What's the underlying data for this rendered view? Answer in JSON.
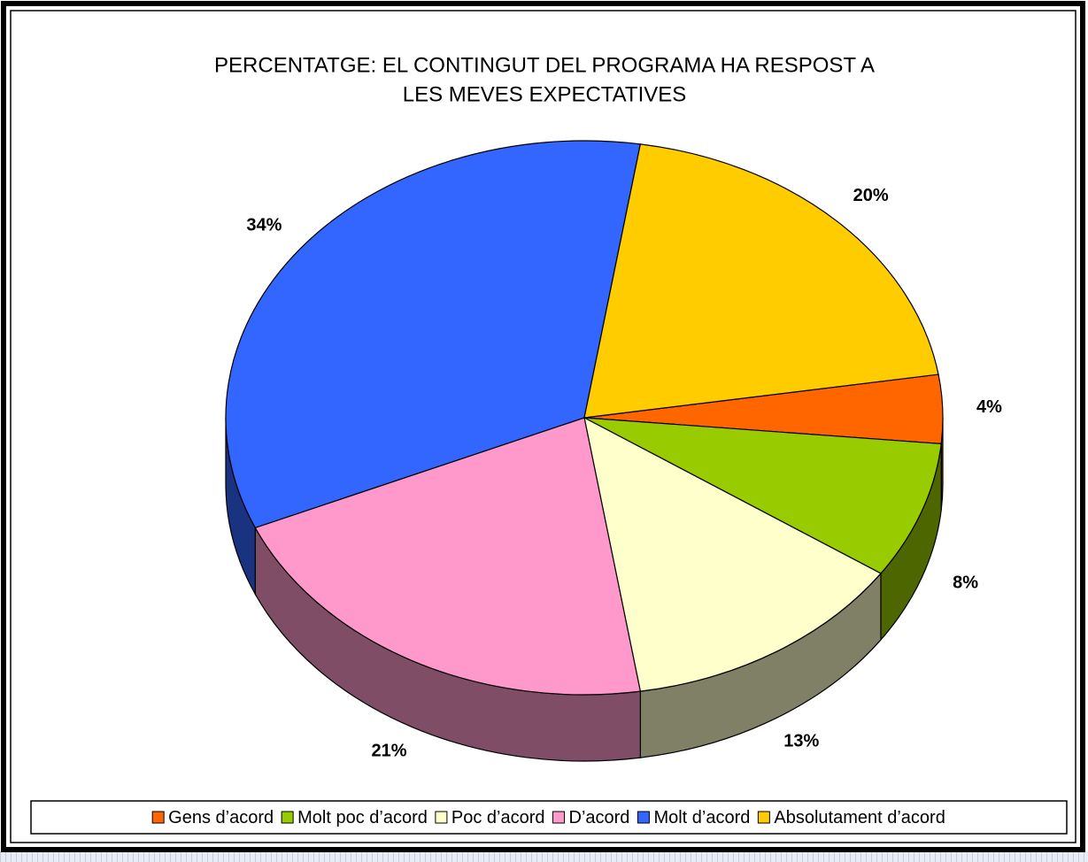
{
  "chart_data": {
    "type": "pie",
    "three_d": true,
    "title": [
      "PERCENTATGE: EL CONTINGUT DEL PROGRAMA HA RESPOST A",
      "LES MEVES EXPECTATIVES"
    ],
    "categories": [
      "Gens d’acord",
      "Molt poc d’acord",
      "Poc d’acord",
      "D’acord",
      "Molt d’acord",
      "Absolutament d’acord"
    ],
    "values": [
      4,
      8,
      13,
      21,
      34,
      20
    ],
    "value_labels": [
      "4%",
      "8%",
      "13%",
      "21%",
      "34%",
      "20%"
    ],
    "colors": [
      "#FF6600",
      "#99CC00",
      "#FFFFCC",
      "#FF99CC",
      "#3366FF",
      "#FFCC00"
    ],
    "legend": "bottom"
  }
}
